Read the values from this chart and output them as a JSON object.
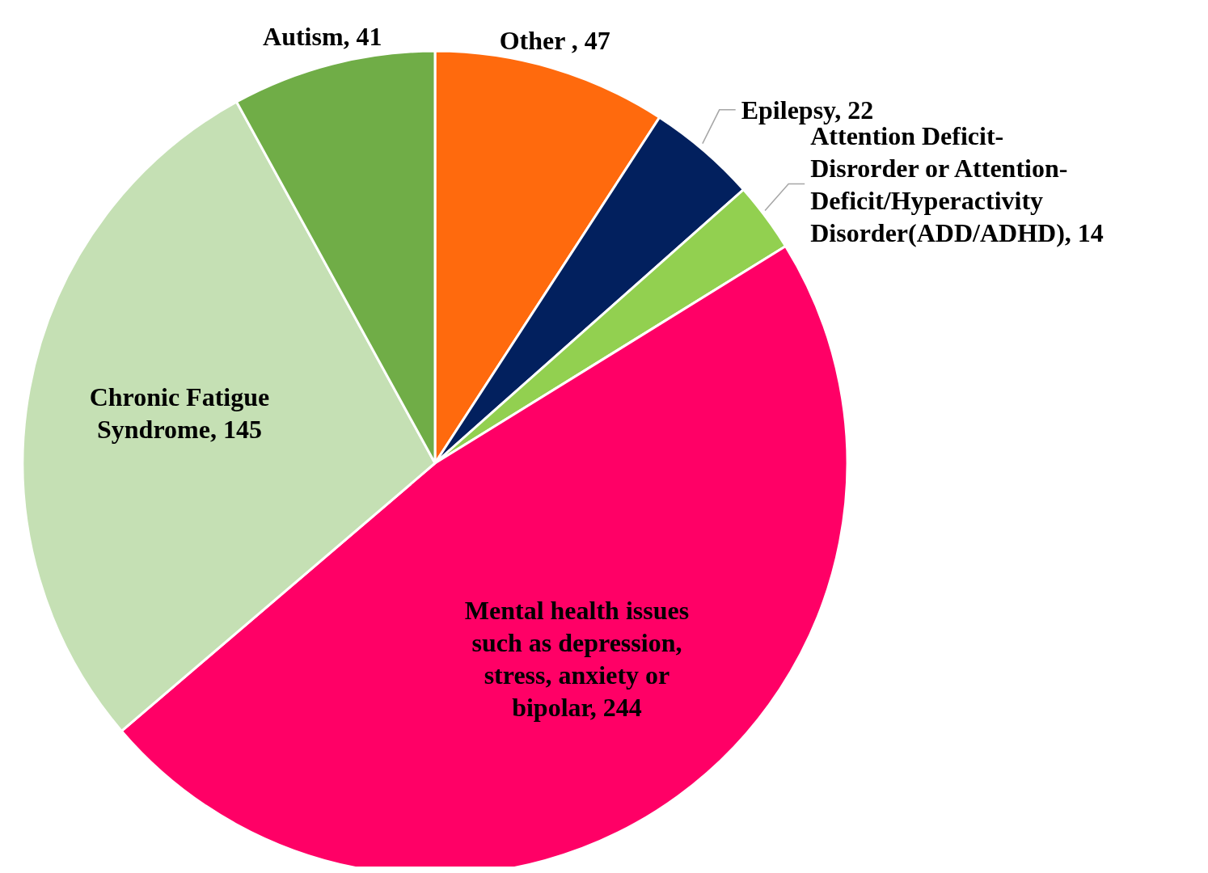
{
  "chart_data": {
    "type": "pie",
    "categories": [
      "Other ",
      "Epilepsy",
      "Attention Deficit-Disrorder or Attention-Deficit/Hyperactivity Disorder(ADD/ADHD)",
      "Mental health issues such as depression, stress, anxiety or bipolar",
      "Chronic Fatigue Syndrome",
      "Autism"
    ],
    "values": [
      47,
      22,
      14,
      244,
      145,
      41
    ],
    "colors": [
      "#ff6a0d",
      "#02205e",
      "#92d050",
      "#ff0066",
      "#c5e0b4",
      "#70ad47"
    ],
    "value_labels": [
      ", 47",
      ", 22",
      ", 14",
      ", 244",
      ", 145",
      ", 41"
    ]
  }
}
